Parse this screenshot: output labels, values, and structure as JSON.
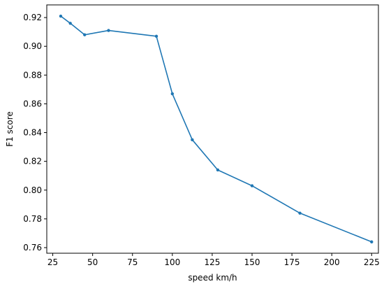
{
  "chart_data": {
    "type": "line",
    "title": "",
    "xlabel": "speed km/h",
    "ylabel": "F1 score",
    "xlim": [
      21.25,
      229.25
    ],
    "ylim": [
      0.7561,
      0.9288
    ],
    "xticks": [
      25,
      50,
      75,
      100,
      125,
      150,
      175,
      200,
      225
    ],
    "yticks": [
      0.76,
      0.78,
      0.8,
      0.82,
      0.84,
      0.86,
      0.88,
      0.9,
      0.92
    ],
    "xtick_labels": [
      "25",
      "50",
      "75",
      "100",
      "125",
      "150",
      "175",
      "200",
      "225"
    ],
    "ytick_labels": [
      "0.76",
      "0.78",
      "0.80",
      "0.82",
      "0.84",
      "0.86",
      "0.88",
      "0.90",
      "0.92"
    ],
    "grid": false,
    "legend": "none",
    "colors": {
      "line": "#1f77b4",
      "axes": "#000000",
      "background": "#ffffff"
    },
    "series": [
      {
        "x": [
          30,
          36,
          45,
          60,
          90,
          100,
          112.5,
          128.5,
          150,
          180,
          225
        ],
        "y": [
          0.921,
          0.916,
          0.908,
          0.911,
          0.907,
          0.867,
          0.835,
          0.814,
          0.803,
          0.784,
          0.764
        ]
      }
    ]
  }
}
